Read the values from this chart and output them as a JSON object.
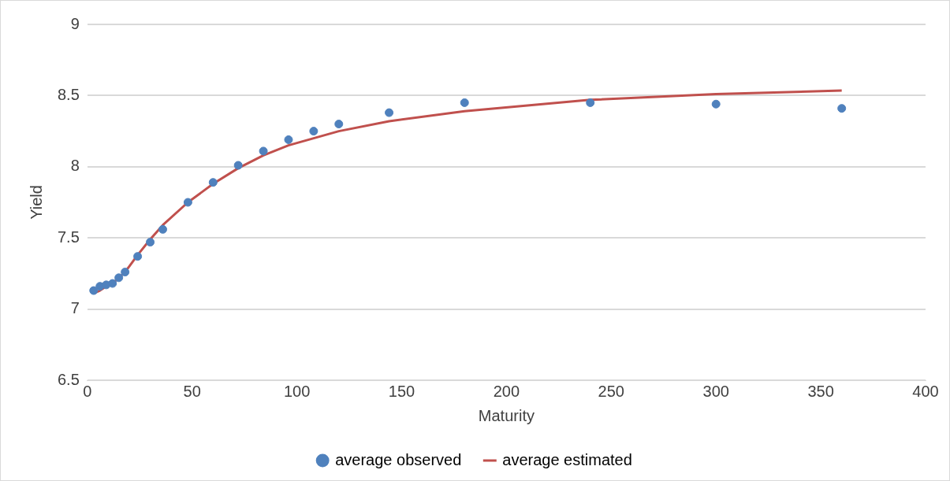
{
  "chart_data": {
    "type": "scatter",
    "xlabel": "Maturity",
    "ylabel": "Yield",
    "xlim": [
      0,
      400
    ],
    "xticks": [
      0,
      50,
      100,
      150,
      200,
      250,
      300,
      350,
      400
    ],
    "ylim": [
      6.5,
      9
    ],
    "yticks": [
      6.5,
      7,
      7.5,
      8,
      8.5,
      9
    ],
    "grid": "y",
    "legend": "bottom",
    "marker": "circle",
    "x": [
      3,
      6,
      9,
      12,
      15,
      18,
      24,
      30,
      36,
      48,
      60,
      72,
      84,
      96,
      108,
      120,
      144,
      180,
      240,
      300,
      360
    ],
    "series": [
      {
        "name": "average observed",
        "color": "#4f81bd",
        "values": [
          7.13,
          7.16,
          7.17,
          7.18,
          7.22,
          7.26,
          7.37,
          7.47,
          7.56,
          7.75,
          7.89,
          8.01,
          8.11,
          8.19,
          8.25,
          8.3,
          8.38,
          8.45,
          8.45,
          8.44,
          8.41
        ]
      },
      {
        "name": "average estimated",
        "type": "line",
        "marker": "none",
        "color": "#c0504d",
        "values": [
          7.11,
          7.13,
          7.16,
          7.18,
          7.22,
          7.26,
          7.38,
          7.49,
          7.59,
          7.75,
          7.88,
          7.99,
          8.08,
          8.15,
          8.2,
          8.25,
          8.32,
          8.39,
          8.47,
          8.51,
          8.535
        ]
      }
    ]
  }
}
